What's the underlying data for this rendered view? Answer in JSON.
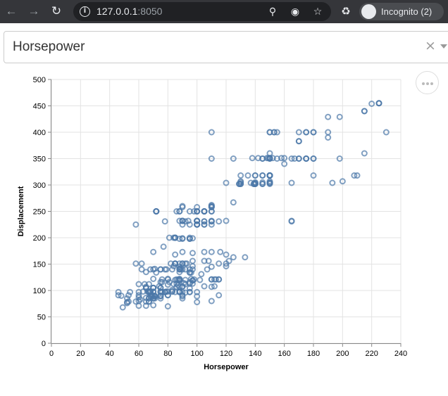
{
  "browser": {
    "url_host": "127.0.0.1",
    "url_port": ":8050",
    "profile_label": "Incognito (2)"
  },
  "dropdown": {
    "selected": "Horsepower",
    "clear_symbol": "×"
  },
  "chart_data": {
    "type": "scatter",
    "title": "",
    "xlabel": "Horsepower",
    "ylabel": "Displacement",
    "xlim": [
      0,
      240
    ],
    "ylim": [
      0,
      500
    ],
    "x_ticks": [
      0,
      20,
      40,
      60,
      80,
      100,
      120,
      140,
      160,
      180,
      200,
      220,
      240
    ],
    "y_ticks": [
      0,
      50,
      100,
      150,
      200,
      250,
      300,
      350,
      400,
      450,
      500
    ],
    "grid": true,
    "marker": "open-circle",
    "color": "#4c78a8",
    "points": [
      [
        130,
        307
      ],
      [
        165,
        350
      ],
      [
        150,
        318
      ],
      [
        150,
        304
      ],
      [
        140,
        302
      ],
      [
        198,
        429
      ],
      [
        220,
        454
      ],
      [
        215,
        440
      ],
      [
        225,
        455
      ],
      [
        190,
        390
      ],
      [
        170,
        383
      ],
      [
        160,
        340
      ],
      [
        150,
        400
      ],
      [
        225,
        455
      ],
      [
        95,
        113
      ],
      [
        95,
        198
      ],
      [
        97,
        199
      ],
      [
        85,
        200
      ],
      [
        88,
        97
      ],
      [
        46,
        97
      ],
      [
        87,
        110
      ],
      [
        90,
        107
      ],
      [
        95,
        104
      ],
      [
        113,
        121
      ],
      [
        90,
        199
      ],
      [
        215,
        360
      ],
      [
        200,
        307
      ],
      [
        210,
        318
      ],
      [
        193,
        304
      ],
      [
        88,
        97
      ],
      [
        90,
        140
      ],
      [
        100,
        250
      ],
      [
        105,
        250
      ],
      [
        100,
        232
      ],
      [
        88,
        250
      ],
      [
        100,
        258
      ],
      [
        165,
        232
      ],
      [
        175,
        350
      ],
      [
        153,
        400
      ],
      [
        150,
        351
      ],
      [
        180,
        318
      ],
      [
        170,
        383
      ],
      [
        175,
        400
      ],
      [
        110,
        400
      ],
      [
        72,
        250
      ],
      [
        86,
        250
      ],
      [
        90,
        258
      ],
      [
        70,
        122
      ],
      [
        76,
        116
      ],
      [
        65,
        79
      ],
      [
        69,
        88
      ],
      [
        60,
        71
      ],
      [
        70,
        72
      ],
      [
        95,
        97
      ],
      [
        80,
        91
      ],
      [
        54,
        97
      ],
      [
        90,
        97
      ],
      [
        86,
        113
      ],
      [
        165,
        304
      ],
      [
        175,
        400
      ],
      [
        150,
        304
      ],
      [
        153,
        400
      ],
      [
        150,
        307
      ],
      [
        208,
        318
      ],
      [
        155,
        400
      ],
      [
        160,
        351
      ],
      [
        190,
        429
      ],
      [
        97,
        113
      ],
      [
        150,
        350
      ],
      [
        130,
        318
      ],
      [
        140,
        304
      ],
      [
        150,
        302
      ],
      [
        112,
        108
      ],
      [
        76,
        97
      ],
      [
        87,
        120
      ],
      [
        69,
        91
      ],
      [
        86,
        121
      ],
      [
        92,
        96
      ],
      [
        97,
        140
      ],
      [
        80,
        70
      ],
      [
        88,
        122
      ],
      [
        175,
        350
      ],
      [
        150,
        318
      ],
      [
        145,
        302
      ],
      [
        137,
        304
      ],
      [
        150,
        400
      ],
      [
        198,
        350
      ],
      [
        150,
        304
      ],
      [
        158,
        351
      ],
      [
        150,
        318
      ],
      [
        215,
        440
      ],
      [
        225,
        455
      ],
      [
        175,
        350
      ],
      [
        105,
        225
      ],
      [
        100,
        250
      ],
      [
        100,
        232
      ],
      [
        88,
        198
      ],
      [
        95,
        97
      ],
      [
        46,
        91
      ],
      [
        150,
        351
      ],
      [
        167,
        350
      ],
      [
        170,
        350
      ],
      [
        180,
        400
      ],
      [
        100,
        225
      ],
      [
        88,
        250
      ],
      [
        72,
        250
      ],
      [
        94,
        232
      ],
      [
        90,
        198
      ],
      [
        85,
        97
      ],
      [
        107,
        140
      ],
      [
        90,
        108
      ],
      [
        145,
        302
      ],
      [
        230,
        400
      ],
      [
        49,
        68
      ],
      [
        75,
        116
      ],
      [
        91,
        114
      ],
      [
        112,
        121
      ],
      [
        150,
        318
      ],
      [
        110,
        121
      ],
      [
        122,
        156
      ],
      [
        180,
        350
      ],
      [
        95,
        198
      ],
      [
        100,
        232
      ],
      [
        100,
        250
      ],
      [
        67,
        79
      ],
      [
        80,
        122
      ],
      [
        65,
        71
      ],
      [
        75,
        140
      ],
      [
        100,
        250
      ],
      [
        110,
        258
      ],
      [
        105,
        225
      ],
      [
        140,
        302
      ],
      [
        150,
        350
      ],
      [
        150,
        318
      ],
      [
        140,
        302
      ],
      [
        150,
        304
      ],
      [
        83,
        98
      ],
      [
        67,
        79
      ],
      [
        78,
        97
      ],
      [
        52,
        76
      ],
      [
        61,
        83
      ],
      [
        75,
        90
      ],
      [
        75,
        140
      ],
      [
        97,
        156
      ],
      [
        93,
        151
      ],
      [
        67,
        97
      ],
      [
        95,
        140
      ],
      [
        105,
        250
      ],
      [
        72,
        250
      ],
      [
        72,
        250
      ],
      [
        170,
        400
      ],
      [
        145,
        350
      ],
      [
        150,
        318
      ],
      [
        148,
        351
      ],
      [
        110,
        231
      ],
      [
        105,
        250
      ],
      [
        110,
        258
      ],
      [
        95,
        225
      ],
      [
        110,
        231
      ],
      [
        110,
        262
      ],
      [
        129,
        302
      ],
      [
        75,
        97
      ],
      [
        83,
        140
      ],
      [
        100,
        232
      ],
      [
        78,
        140
      ],
      [
        96,
        134
      ],
      [
        71,
        90
      ],
      [
        97,
        119
      ],
      [
        97,
        171
      ],
      [
        70,
        90
      ],
      [
        90,
        232
      ],
      [
        95,
        115
      ],
      [
        88,
        120
      ],
      [
        98,
        121
      ],
      [
        115,
        121
      ],
      [
        53,
        91
      ],
      [
        86,
        107
      ],
      [
        81,
        116
      ],
      [
        92,
        140
      ],
      [
        79,
        98
      ],
      [
        83,
        101
      ],
      [
        140,
        305
      ],
      [
        150,
        318
      ],
      [
        120,
        304
      ],
      [
        152,
        351
      ],
      [
        100,
        225
      ],
      [
        105,
        250
      ],
      [
        81,
        200
      ],
      [
        90,
        232
      ],
      [
        52,
        85
      ],
      [
        60,
        87
      ],
      [
        70,
        140
      ],
      [
        53,
        79
      ],
      [
        100,
        225
      ],
      [
        78,
        231
      ],
      [
        110,
        250
      ],
      [
        95,
        250
      ],
      [
        71,
        85
      ],
      [
        70,
        97
      ],
      [
        75,
        90
      ],
      [
        72,
        134
      ],
      [
        102,
        120
      ],
      [
        150,
        318
      ],
      [
        88,
        121
      ],
      [
        108,
        156
      ],
      [
        120,
        168
      ],
      [
        180,
        350
      ],
      [
        145,
        350
      ],
      [
        130,
        302
      ],
      [
        150,
        318
      ],
      [
        68,
        98
      ],
      [
        80,
        111
      ],
      [
        58,
        79
      ],
      [
        96,
        122
      ],
      [
        70,
        85
      ],
      [
        145,
        305
      ],
      [
        110,
        260
      ],
      [
        145,
        318
      ],
      [
        130,
        302
      ],
      [
        110,
        250
      ],
      [
        105,
        231
      ],
      [
        100,
        225
      ],
      [
        98,
        250
      ],
      [
        180,
        400
      ],
      [
        170,
        350
      ],
      [
        190,
        400
      ],
      [
        149,
        351
      ],
      [
        78,
        97
      ],
      [
        88,
        151
      ],
      [
        75,
        97
      ],
      [
        89,
        140
      ],
      [
        63,
        98
      ],
      [
        83,
        98
      ],
      [
        67,
        97
      ],
      [
        78,
        97
      ],
      [
        97,
        146
      ],
      [
        110,
        121
      ],
      [
        110,
        80
      ],
      [
        48,
        90
      ],
      [
        66,
        98
      ],
      [
        52,
        78
      ],
      [
        70,
        85
      ],
      [
        60,
        91
      ],
      [
        110,
        260
      ],
      [
        140,
        318
      ],
      [
        139,
        302
      ],
      [
        105,
        231
      ],
      [
        95,
        200
      ],
      [
        85,
        200
      ],
      [
        88,
        140
      ],
      [
        100,
        232
      ],
      [
        90,
        225
      ],
      [
        105,
        250
      ],
      [
        85,
        200
      ],
      [
        110,
        232
      ],
      [
        120,
        151
      ],
      [
        145,
        318
      ],
      [
        165,
        231
      ],
      [
        139,
        302
      ],
      [
        140,
        318
      ],
      [
        68,
        98
      ],
      [
        95,
        134
      ],
      [
        97,
        119
      ],
      [
        75,
        105
      ],
      [
        95,
        134
      ],
      [
        105,
        156
      ],
      [
        85,
        151
      ],
      [
        97,
        119
      ],
      [
        103,
        131
      ],
      [
        125,
        163
      ],
      [
        115,
        121
      ],
      [
        133,
        163
      ],
      [
        71,
        89
      ],
      [
        68,
        98
      ],
      [
        115,
        231
      ],
      [
        85,
        200
      ],
      [
        88,
        140
      ],
      [
        90,
        232
      ],
      [
        110,
        225
      ],
      [
        130,
        305
      ],
      [
        129,
        302
      ],
      [
        138,
        351
      ],
      [
        135,
        318
      ],
      [
        155,
        350
      ],
      [
        142,
        351
      ],
      [
        125,
        267
      ],
      [
        150,
        360
      ],
      [
        71,
        89
      ],
      [
        65,
        86
      ],
      [
        80,
        98
      ],
      [
        80,
        121
      ],
      [
        77,
        183
      ],
      [
        125,
        350
      ],
      [
        71,
        141
      ],
      [
        90,
        260
      ],
      [
        70,
        105
      ],
      [
        70,
        105
      ],
      [
        90,
        85
      ],
      [
        115,
        91
      ],
      [
        115,
        151
      ],
      [
        90,
        173
      ],
      [
        70,
        173
      ],
      [
        90,
        151
      ],
      [
        88,
        98
      ],
      [
        90,
        89
      ],
      [
        70,
        98
      ],
      [
        67,
        86
      ],
      [
        58,
        151
      ],
      [
        62,
        140
      ],
      [
        92,
        151
      ],
      [
        65,
        105
      ],
      [
        110,
        173
      ],
      [
        85,
        151
      ],
      [
        92,
        112
      ],
      [
        60,
        97
      ],
      [
        65,
        107
      ],
      [
        90,
        91
      ],
      [
        75,
        98
      ],
      [
        120,
        146
      ],
      [
        76,
        121
      ],
      [
        60,
        80
      ],
      [
        68,
        90
      ],
      [
        67,
        98
      ],
      [
        100,
        78
      ],
      [
        67,
        85
      ],
      [
        80,
        91
      ],
      [
        65,
        105
      ],
      [
        75,
        85
      ],
      [
        100,
        97
      ],
      [
        110,
        107
      ],
      [
        105,
        108
      ],
      [
        88,
        119
      ],
      [
        85,
        120
      ],
      [
        88,
        141
      ],
      [
        88,
        145
      ],
      [
        85,
        168
      ],
      [
        84,
        146
      ],
      [
        92,
        231
      ],
      [
        110,
        350
      ],
      [
        84,
        200
      ],
      [
        58,
        225
      ],
      [
        64,
        112
      ],
      [
        60,
        112
      ],
      [
        67,
        112
      ],
      [
        65,
        135
      ],
      [
        62,
        151
      ],
      [
        68,
        140
      ],
      [
        75,
        105
      ],
      [
        75,
        89
      ],
      [
        100,
        89
      ],
      [
        74,
        108
      ],
      [
        116,
        173
      ],
      [
        120,
        232
      ],
      [
        110,
        145
      ],
      [
        105,
        173
      ],
      [
        88,
        232
      ],
      [
        85,
        151
      ],
      [
        88,
        107
      ],
      [
        88,
        98
      ],
      [
        88,
        135
      ],
      [
        85,
        151
      ],
      [
        84,
        112
      ],
      [
        79,
        140
      ],
      [
        82,
        151
      ],
      [
        92,
        120
      ],
      [
        70,
        105
      ],
      [
        90,
        151
      ]
    ]
  }
}
